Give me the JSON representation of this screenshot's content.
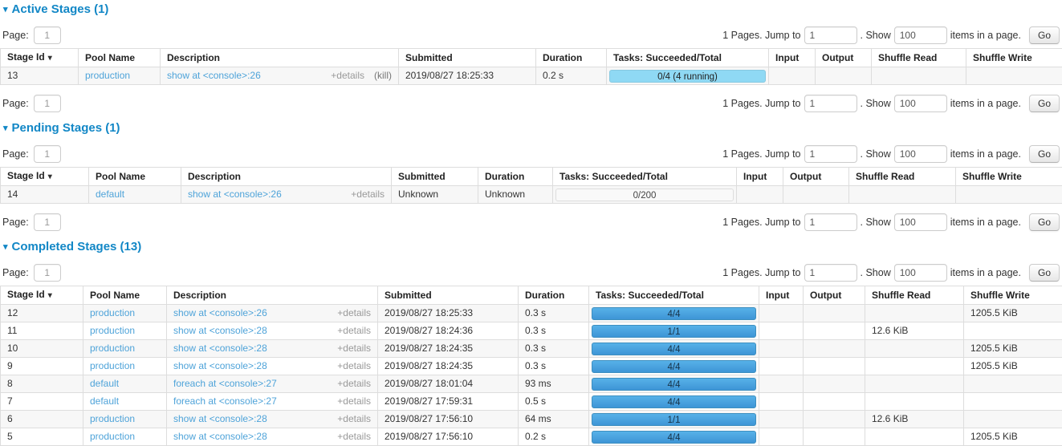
{
  "colors": {
    "heading_blue": "#1287c6",
    "link_blue": "#4ea3d9",
    "bar_done_top": "#57b1e8",
    "bar_done_bottom": "#3e95d6",
    "bar_running": "#8fd9f4",
    "row_stripe": "#f7f7f7",
    "table_border": "#dddddd"
  },
  "pagination": {
    "page_label": "Page:",
    "page_value": "1",
    "pages_text": "1 Pages. Jump to",
    "jump_value": "1",
    "show_label": ". Show",
    "show_value": "100",
    "items_text": "items in a page.",
    "go_label": "Go"
  },
  "table": {
    "columns": [
      "Stage Id",
      "Pool Name",
      "Description",
      "Submitted",
      "Duration",
      "Tasks: Succeeded/Total",
      "Input",
      "Output",
      "Shuffle Read",
      "Shuffle Write"
    ],
    "sort_arrow": "▾"
  },
  "collapse_arrow": "▾",
  "sections": [
    {
      "id": "active",
      "title": "Active Stages (1)",
      "bottom_pagination": true,
      "rows": [
        {
          "stage_id": "13",
          "pool": "production",
          "desc": "show at <console>:26",
          "details": "+details",
          "kill": "(kill)",
          "submitted": "2019/08/27 18:25:33",
          "duration": "0.2 s",
          "task_label": "0/4 (4 running)",
          "task_state": "running",
          "input": "",
          "output": "",
          "shuffle_read": "",
          "shuffle_write": ""
        }
      ]
    },
    {
      "id": "pending",
      "title": "Pending Stages (1)",
      "bottom_pagination": true,
      "rows": [
        {
          "stage_id": "14",
          "pool": "default",
          "desc": "show at <console>:26",
          "details": "+details",
          "kill": "",
          "submitted": "Unknown",
          "duration": "Unknown",
          "task_label": "0/200",
          "task_state": "pending",
          "input": "",
          "output": "",
          "shuffle_read": "",
          "shuffle_write": ""
        }
      ]
    },
    {
      "id": "completed",
      "title": "Completed Stages (13)",
      "bottom_pagination": false,
      "rows": [
        {
          "stage_id": "12",
          "pool": "production",
          "desc": "show at <console>:26",
          "details": "+details",
          "kill": "",
          "submitted": "2019/08/27 18:25:33",
          "duration": "0.3 s",
          "task_label": "4/4",
          "task_state": "done",
          "input": "",
          "output": "",
          "shuffle_read": "",
          "shuffle_write": "1205.5 KiB"
        },
        {
          "stage_id": "11",
          "pool": "production",
          "desc": "show at <console>:28",
          "details": "+details",
          "kill": "",
          "submitted": "2019/08/27 18:24:36",
          "duration": "0.3 s",
          "task_label": "1/1",
          "task_state": "done",
          "input": "",
          "output": "",
          "shuffle_read": "12.6 KiB",
          "shuffle_write": ""
        },
        {
          "stage_id": "10",
          "pool": "production",
          "desc": "show at <console>:28",
          "details": "+details",
          "kill": "",
          "submitted": "2019/08/27 18:24:35",
          "duration": "0.3 s",
          "task_label": "4/4",
          "task_state": "done",
          "input": "",
          "output": "",
          "shuffle_read": "",
          "shuffle_write": "1205.5 KiB"
        },
        {
          "stage_id": "9",
          "pool": "production",
          "desc": "show at <console>:28",
          "details": "+details",
          "kill": "",
          "submitted": "2019/08/27 18:24:35",
          "duration": "0.3 s",
          "task_label": "4/4",
          "task_state": "done",
          "input": "",
          "output": "",
          "shuffle_read": "",
          "shuffle_write": "1205.5 KiB"
        },
        {
          "stage_id": "8",
          "pool": "default",
          "desc": "foreach at <console>:27",
          "details": "+details",
          "kill": "",
          "submitted": "2019/08/27 18:01:04",
          "duration": "93 ms",
          "task_label": "4/4",
          "task_state": "done",
          "input": "",
          "output": "",
          "shuffle_read": "",
          "shuffle_write": ""
        },
        {
          "stage_id": "7",
          "pool": "default",
          "desc": "foreach at <console>:27",
          "details": "+details",
          "kill": "",
          "submitted": "2019/08/27 17:59:31",
          "duration": "0.5 s",
          "task_label": "4/4",
          "task_state": "done",
          "input": "",
          "output": "",
          "shuffle_read": "",
          "shuffle_write": ""
        },
        {
          "stage_id": "6",
          "pool": "production",
          "desc": "show at <console>:28",
          "details": "+details",
          "kill": "",
          "submitted": "2019/08/27 17:56:10",
          "duration": "64 ms",
          "task_label": "1/1",
          "task_state": "done",
          "input": "",
          "output": "",
          "shuffle_read": "12.6 KiB",
          "shuffle_write": ""
        },
        {
          "stage_id": "5",
          "pool": "production",
          "desc": "show at <console>:28",
          "details": "+details",
          "kill": "",
          "submitted": "2019/08/27 17:56:10",
          "duration": "0.2 s",
          "task_label": "4/4",
          "task_state": "done",
          "input": "",
          "output": "",
          "shuffle_read": "",
          "shuffle_write": "1205.5 KiB"
        }
      ]
    }
  ]
}
